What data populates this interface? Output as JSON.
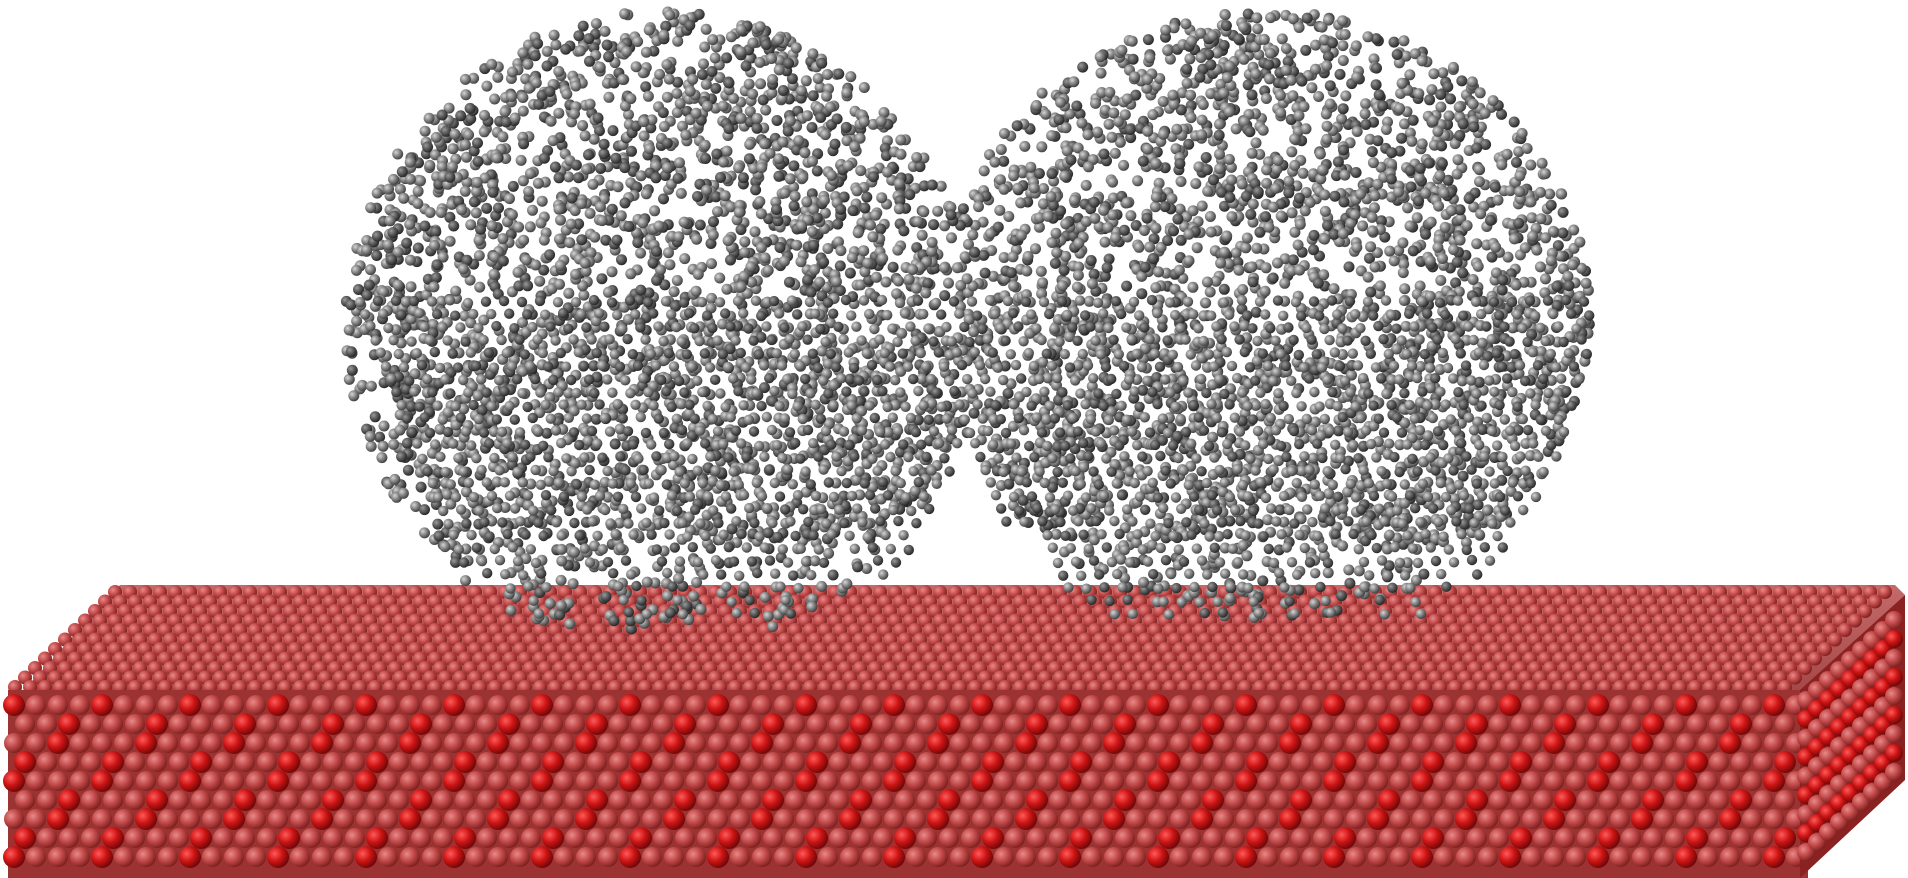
{
  "scene": {
    "subject": "molecular-dynamics-render",
    "colors": {
      "background": "#ffffff",
      "cluster_atom_light": "#9a9a9a",
      "cluster_atom_mid": "#6e6e6e",
      "cluster_atom_dark": "#3c3c3c",
      "substrate_light": "#c45a5a",
      "substrate_mid": "#b03a3a",
      "substrate_dark": "#c01515",
      "substrate_shadow": "#7a1a1a"
    }
  }
}
